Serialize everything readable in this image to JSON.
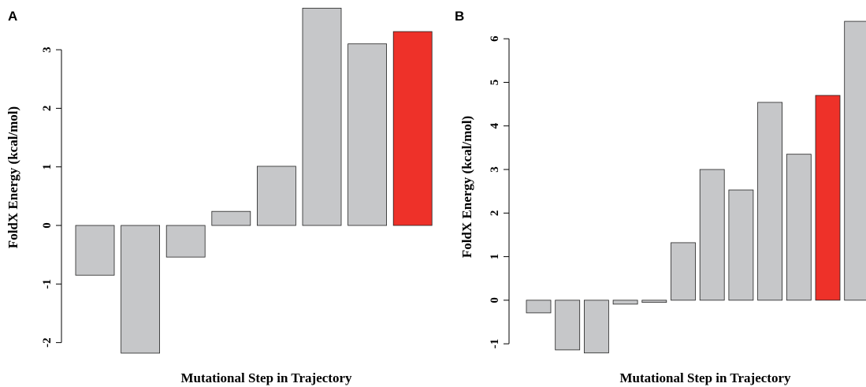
{
  "chart_data": [
    {
      "type": "bar",
      "panel": "A",
      "ylabel": "FoldX Energy (kcal/mol)",
      "xlabel": "Mutational Step in Trajectory",
      "values": [
        -0.85,
        -2.18,
        -0.54,
        0.24,
        1.01,
        3.71,
        3.1,
        3.31
      ],
      "colors": [
        "#c6c7c9",
        "#c6c7c9",
        "#c6c7c9",
        "#c6c7c9",
        "#c6c7c9",
        "#c6c7c9",
        "#c6c7c9",
        "#ee3129"
      ],
      "ylim": [
        -2.2,
        3.72
      ],
      "yticks": [
        -2,
        -1,
        0,
        1,
        2,
        3
      ]
    },
    {
      "type": "bar",
      "panel": "B",
      "ylabel": "FoldX Energy (kcal/mol)",
      "xlabel": "Mutational Step in Trajectory",
      "values": [
        -0.29,
        -1.14,
        -1.21,
        -0.09,
        -0.05,
        1.32,
        3.0,
        2.53,
        4.54,
        3.35,
        4.7,
        6.4
      ],
      "colors": [
        "#c6c7c9",
        "#c6c7c9",
        "#c6c7c9",
        "#c6c7c9",
        "#c6c7c9",
        "#c6c7c9",
        "#c6c7c9",
        "#c6c7c9",
        "#c6c7c9",
        "#c6c7c9",
        "#ee3129",
        "#c6c7c9"
      ],
      "ylim": [
        -1.25,
        6.45
      ],
      "yticks": [
        -1,
        0,
        1,
        2,
        3,
        4,
        5,
        6
      ]
    }
  ]
}
